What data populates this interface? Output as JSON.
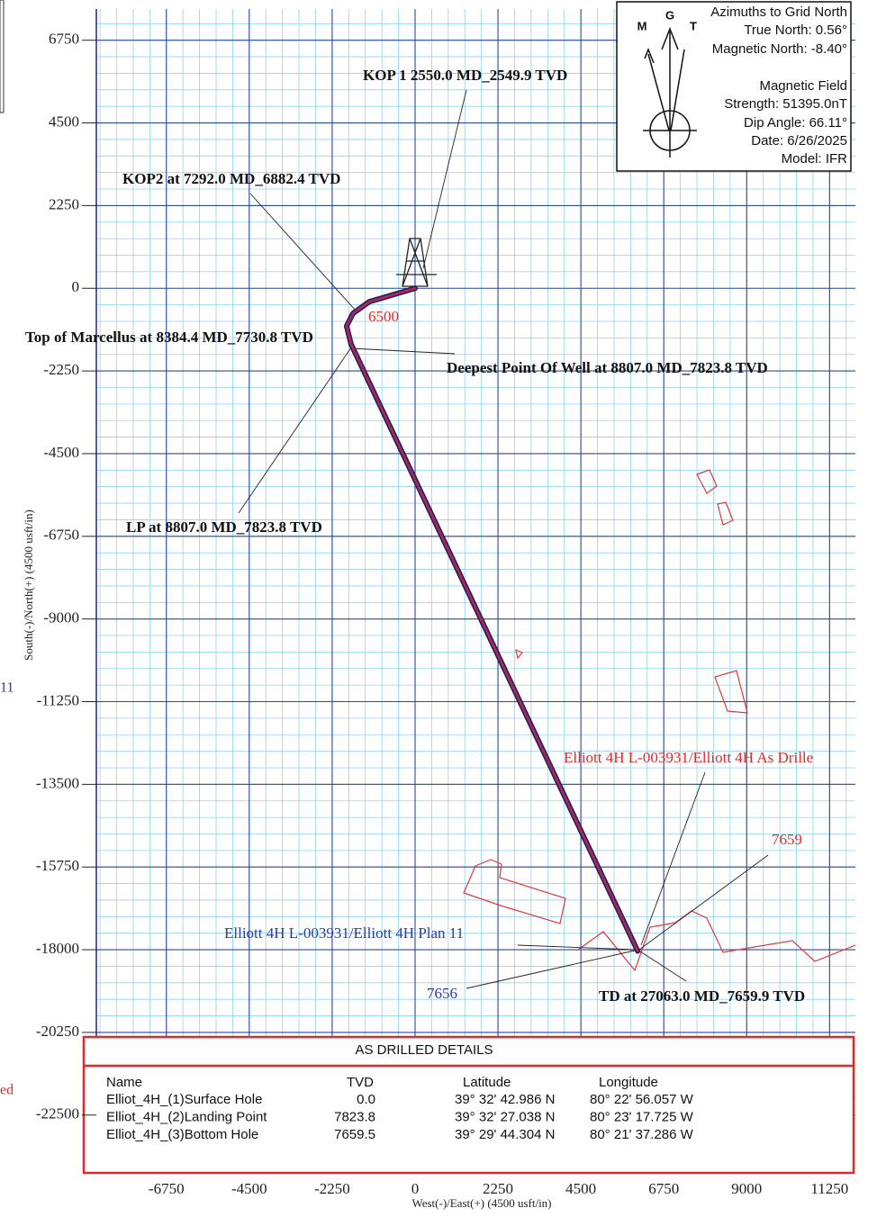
{
  "chart_data": {
    "type": "line",
    "x": [
      0,
      -1247,
      -1688,
      -1859,
      -1736,
      6041
    ],
    "series": [
      {
        "color": "#d8202c",
        "values": [
          0,
          -368,
          -687,
          -1030,
          -1521,
          -18034
        ]
      }
    ],
    "xlim": [
      -8650,
      11950
    ],
    "ylim": [
      -24000,
      7600
    ],
    "xticks": [
      -6750,
      -4500,
      -2250,
      0,
      2250,
      4500,
      6750,
      9000,
      11250
    ],
    "yticks": [
      6750,
      4500,
      2250,
      0,
      -2250,
      -4500,
      -6750,
      -9000,
      -11250,
      -13500,
      -15750,
      -18000,
      -20250,
      -22500
    ],
    "grid": true,
    "xlabel": "West(-)/East(+) (4500 usft/in)",
    "ylabel": "South(-)/North(+) (4500 usft/in)",
    "annotations": [
      "KOP 1 2550.0 MD_2549.9 TVD",
      "KOP2 at 7292.0 MD_6882.4 TVD",
      "Top of Marcellus at 8384.4 MD_7730.8 TVD",
      "Deepest Point Of Well  at 8807.0 MD_7823.8 TVD",
      "LP at 8807.0 MD_7823.8 TVD",
      "6500",
      "Elliott 4H L-003931/Elliott 4H As Drille",
      "7659",
      "Elliott 4H L-003931/Elliott 4H Plan 11",
      "7656",
      "TD at 27063.0 MD_7659.9 TVD"
    ],
    "edge_fragments": [
      "11",
      "ed"
    ]
  },
  "compass": {
    "title": "Azimuths to Grid North",
    "true_north": "True North: 0.56°",
    "magnetic_north": "Magnetic North: -8.40°",
    "field": "Magnetic Field",
    "strength": "Strength: 51395.0nT",
    "dip": "Dip Angle: 66.11°",
    "date": "Date: 6/26/2025",
    "model": "Model: IFR",
    "m": "M",
    "g": "G",
    "t": "T"
  },
  "table": {
    "title": "AS DRILLED  DETAILS",
    "header": [
      "Name",
      "TVD",
      "Latitude",
      "Longitude"
    ],
    "rows": [
      [
        "Elliot_4H_(1)Surface Hole",
        "0.0",
        "39° 32' 42.986 N",
        "80° 22' 56.057 W"
      ],
      [
        "Elliot_4H_(2)Landing Point",
        "7823.8",
        "39° 32' 27.038 N",
        "80° 23' 17.725 W"
      ],
      [
        "Elliot_4H_(3)Bottom Hole",
        "7659.5",
        "39° 29' 44.304 N",
        "80° 21' 37.286 W"
      ]
    ]
  }
}
